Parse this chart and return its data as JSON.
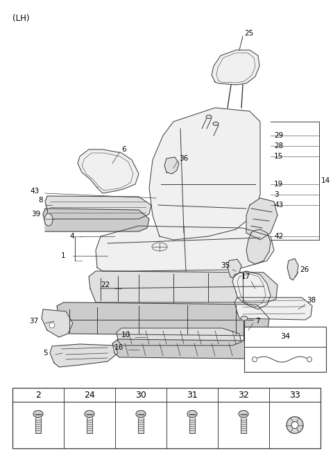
{
  "fig_width": 4.8,
  "fig_height": 6.56,
  "dpi": 100,
  "bg": "#ffffff",
  "lh_label": "(LH)",
  "table_numbers": [
    "2",
    "24",
    "30",
    "31",
    "32",
    "33"
  ],
  "line_color": "#3a3a3a",
  "fill_light": "#f0f0f0",
  "fill_mid": "#e0e0e0",
  "fill_dark": "#cccccc"
}
